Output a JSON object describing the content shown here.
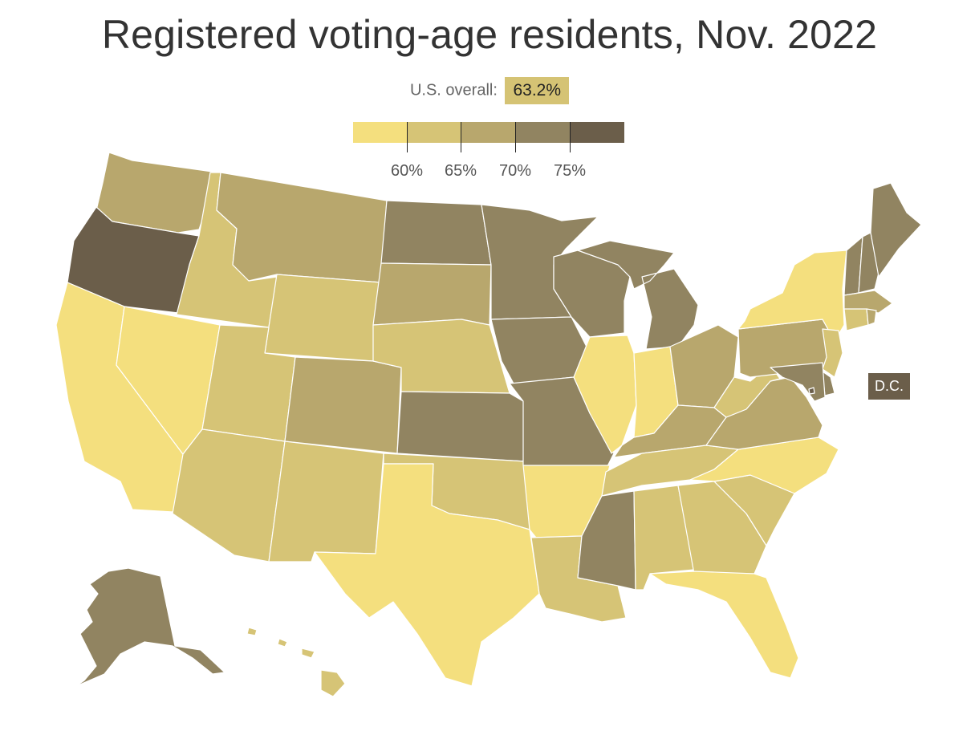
{
  "title": "Registered voting-age residents, Nov. 2022",
  "overall": {
    "label": "U.S. overall:",
    "value": "63.2%"
  },
  "legend": {
    "bins": [
      "#f4df7e",
      "#d6c476",
      "#b8a76d",
      "#918461",
      "#6b5e4a"
    ],
    "ticks": [
      "60%",
      "65%",
      "70%",
      "75%"
    ]
  },
  "dc_label": "D.C.",
  "colors": {
    "c1": "#f4df7e",
    "c2": "#d6c476",
    "c3": "#b8a76d",
    "c4": "#918461",
    "c5": "#6b5e4a"
  },
  "states": [
    {
      "name": "Washington",
      "bin": 3
    },
    {
      "name": "Oregon",
      "bin": 5
    },
    {
      "name": "California",
      "bin": 1
    },
    {
      "name": "Nevada",
      "bin": 1
    },
    {
      "name": "Idaho",
      "bin": 2
    },
    {
      "name": "Montana",
      "bin": 3
    },
    {
      "name": "Wyoming",
      "bin": 2
    },
    {
      "name": "Utah",
      "bin": 2
    },
    {
      "name": "Arizona",
      "bin": 2
    },
    {
      "name": "Colorado",
      "bin": 3
    },
    {
      "name": "New Mexico",
      "bin": 2
    },
    {
      "name": "North Dakota",
      "bin": 4
    },
    {
      "name": "South Dakota",
      "bin": 3
    },
    {
      "name": "Nebraska",
      "bin": 2
    },
    {
      "name": "Kansas",
      "bin": 4
    },
    {
      "name": "Oklahoma",
      "bin": 2
    },
    {
      "name": "Texas",
      "bin": 1
    },
    {
      "name": "Minnesota",
      "bin": 4
    },
    {
      "name": "Iowa",
      "bin": 4
    },
    {
      "name": "Missouri",
      "bin": 4
    },
    {
      "name": "Arkansas",
      "bin": 1
    },
    {
      "name": "Louisiana",
      "bin": 2
    },
    {
      "name": "Wisconsin",
      "bin": 4
    },
    {
      "name": "Illinois",
      "bin": 1
    },
    {
      "name": "Michigan",
      "bin": 4
    },
    {
      "name": "Indiana",
      "bin": 1
    },
    {
      "name": "Ohio",
      "bin": 3
    },
    {
      "name": "Kentucky",
      "bin": 3
    },
    {
      "name": "Tennessee",
      "bin": 2
    },
    {
      "name": "Mississippi",
      "bin": 4
    },
    {
      "name": "Alabama",
      "bin": 2
    },
    {
      "name": "Georgia",
      "bin": 2
    },
    {
      "name": "Florida",
      "bin": 1
    },
    {
      "name": "South Carolina",
      "bin": 2
    },
    {
      "name": "North Carolina",
      "bin": 1
    },
    {
      "name": "Virginia",
      "bin": 3
    },
    {
      "name": "West Virginia",
      "bin": 2
    },
    {
      "name": "Pennsylvania",
      "bin": 3
    },
    {
      "name": "New York",
      "bin": 1
    },
    {
      "name": "Vermont",
      "bin": 4
    },
    {
      "name": "New Hampshire",
      "bin": 4
    },
    {
      "name": "Maine",
      "bin": 4
    },
    {
      "name": "Massachusetts",
      "bin": 3
    },
    {
      "name": "Connecticut",
      "bin": 2
    },
    {
      "name": "Rhode Island",
      "bin": 3
    },
    {
      "name": "New Jersey",
      "bin": 2
    },
    {
      "name": "Delaware",
      "bin": 4
    },
    {
      "name": "Maryland",
      "bin": 4
    },
    {
      "name": "District of Columbia",
      "bin": 5
    },
    {
      "name": "Alaska",
      "bin": 4
    },
    {
      "name": "Hawaii",
      "bin": 2
    }
  ]
}
